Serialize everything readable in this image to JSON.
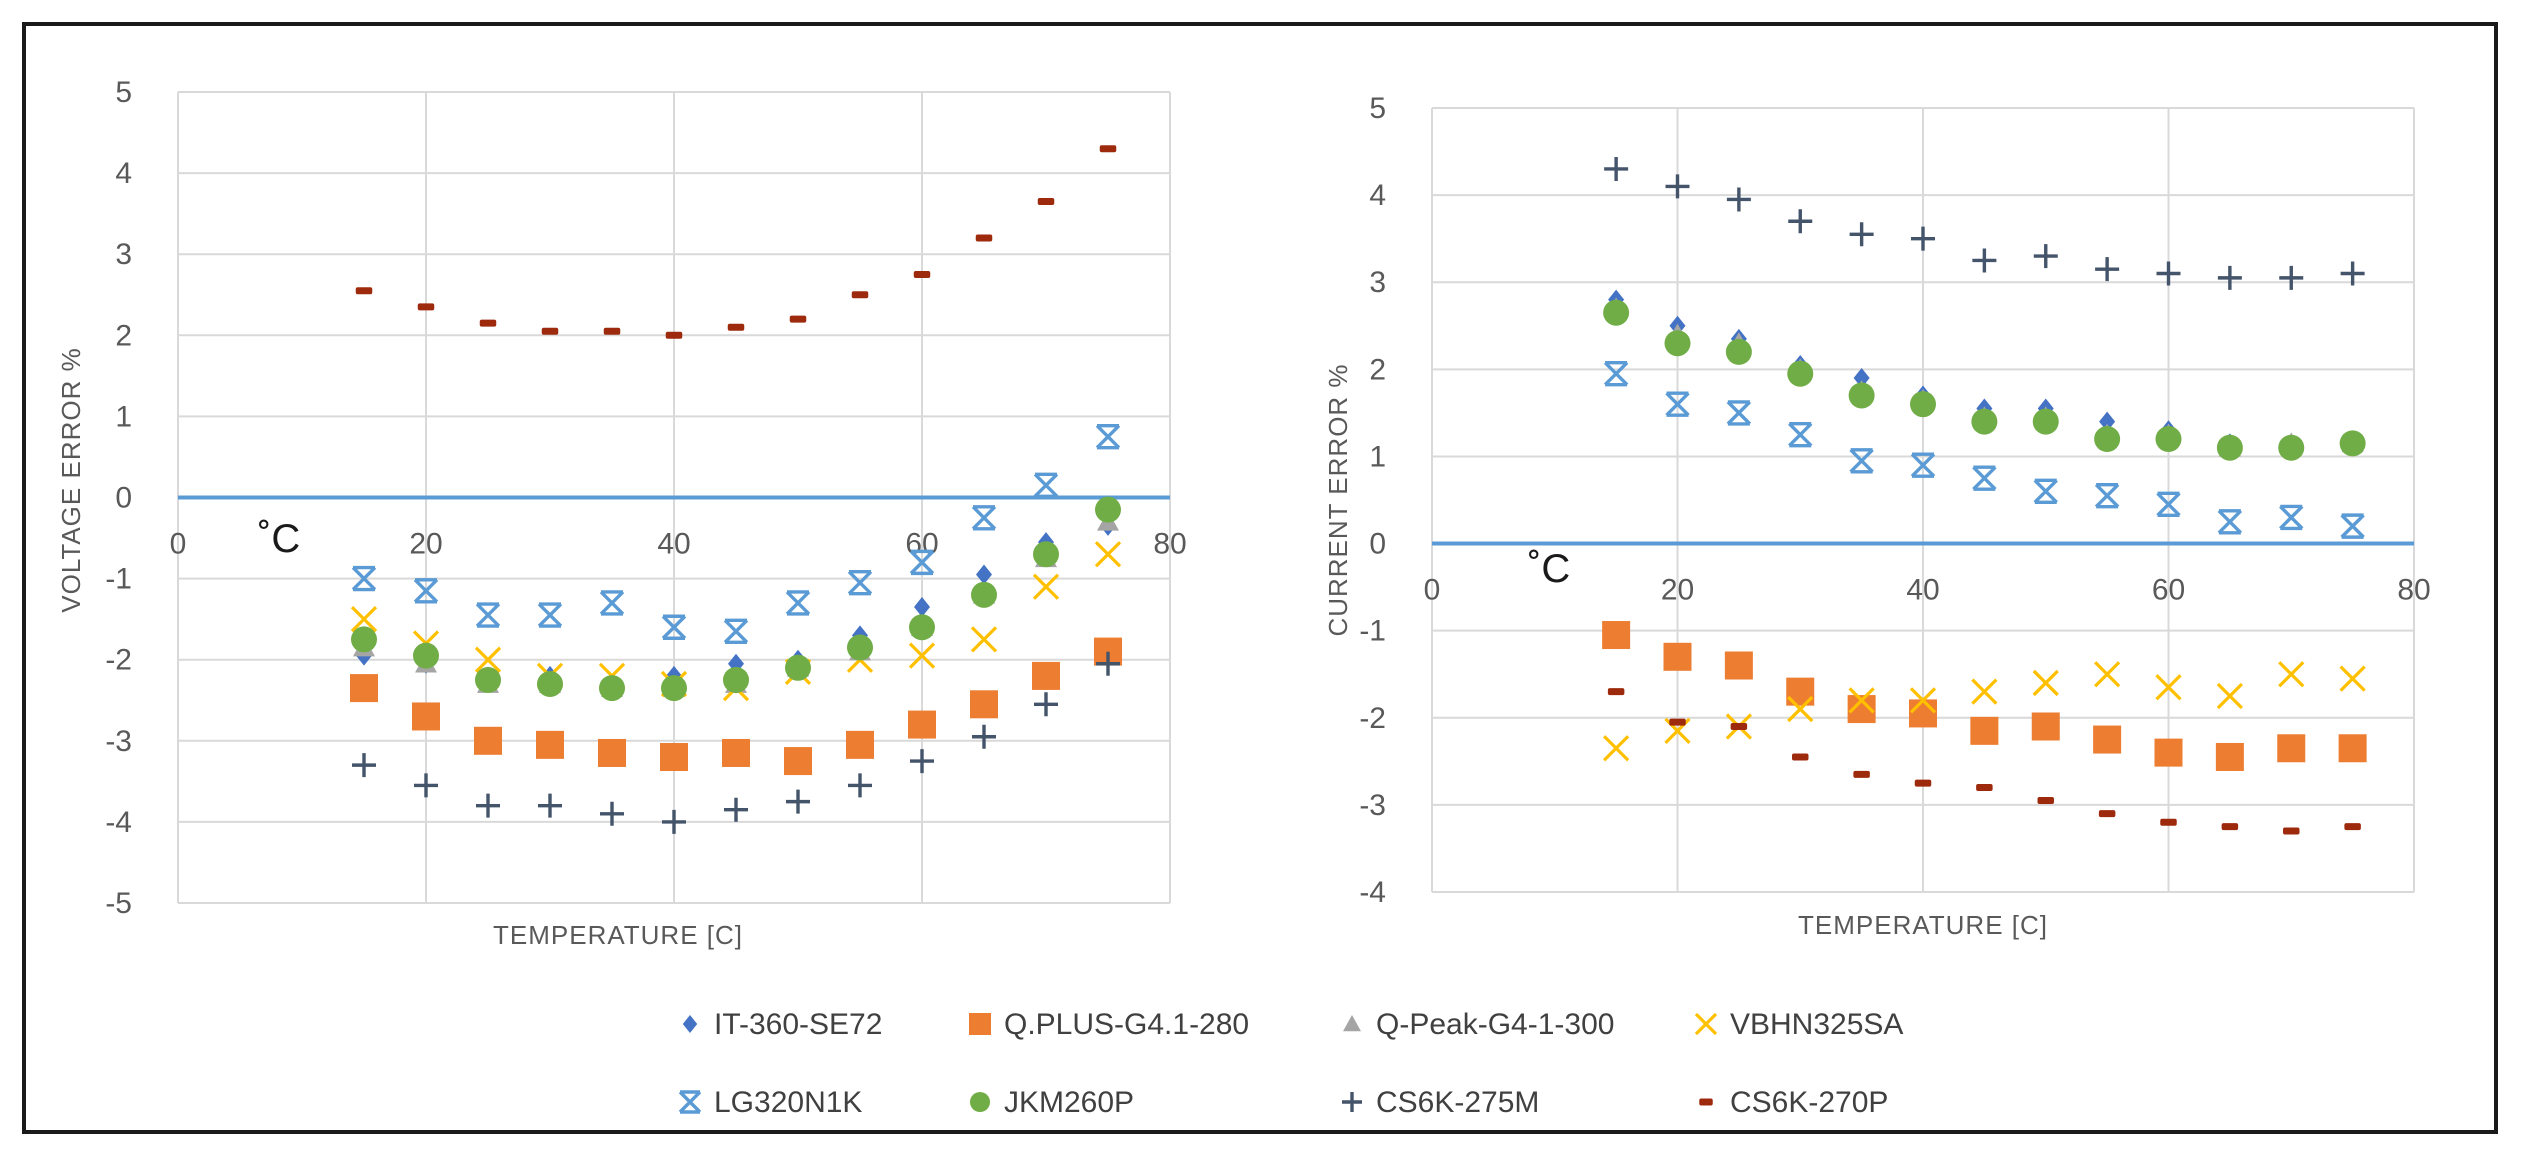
{
  "legend": [
    {
      "name": "IT-360-SE72",
      "color": "#4472C4",
      "marker": "diamond"
    },
    {
      "name": "Q.PLUS-G4.1-280",
      "color": "#ED7D31",
      "marker": "square"
    },
    {
      "name": "Q-Peak-G4-1-300",
      "color": "#A5A5A5",
      "marker": "triangle"
    },
    {
      "name": "VBHN325SA",
      "color": "#FFC000",
      "marker": "x"
    },
    {
      "name": "LG320N1K",
      "color": "#5B9BD5",
      "marker": "xbar"
    },
    {
      "name": "JKM260P",
      "color": "#70AD47",
      "marker": "circle"
    },
    {
      "name": "CS6K-275M",
      "color": "#44546A",
      "marker": "plus"
    },
    {
      "name": "CS6K-270P",
      "color": "#9E2A0E",
      "marker": "dash"
    }
  ],
  "chart_data": [
    {
      "type": "scatter",
      "xlabel": "TEMPERATURE [C]",
      "ylabel": "VOLTAGE ERROR %",
      "unit_label": "˚C",
      "xlim": [
        0,
        80
      ],
      "ylim": [
        -5,
        5
      ],
      "xticks": [
        0,
        20,
        40,
        60,
        80
      ],
      "yticks": [
        5,
        4,
        3,
        2,
        1,
        0,
        -1,
        -2,
        -3,
        -4,
        -5
      ],
      "grid": true,
      "zero_line_color": "#5B9BD5",
      "series": [
        {
          "name": "IT-360-SE72",
          "x": [
            15,
            20,
            25,
            30,
            35,
            40,
            45,
            50,
            55,
            60,
            65,
            70,
            75
          ],
          "y": [
            -1.95,
            -2.05,
            -2.25,
            -2.2,
            -2.3,
            -2.2,
            -2.05,
            -2.0,
            -1.7,
            -1.35,
            -0.95,
            -0.55,
            -0.35
          ]
        },
        {
          "name": "Q.PLUS-G4.1-280",
          "x": [
            15,
            20,
            25,
            30,
            35,
            40,
            45,
            50,
            55,
            60,
            65,
            70,
            75
          ],
          "y": [
            -2.35,
            -2.7,
            -3.0,
            -3.05,
            -3.15,
            -3.2,
            -3.15,
            -3.25,
            -3.05,
            -2.8,
            -2.55,
            -2.2,
            -1.9
          ]
        },
        {
          "name": "Q-Peak-G4-1-300",
          "x": [
            15,
            20,
            25,
            30,
            35,
            40,
            45,
            50,
            55,
            60,
            65,
            70,
            75
          ],
          "y": [
            -1.85,
            -2.05,
            -2.3,
            -2.3,
            -2.35,
            -2.35,
            -2.3,
            -2.1,
            -1.9,
            -1.6,
            -1.2,
            -0.75,
            -0.3
          ]
        },
        {
          "name": "VBHN325SA",
          "x": [
            15,
            20,
            25,
            30,
            35,
            40,
            45,
            50,
            55,
            60,
            65,
            70,
            75
          ],
          "y": [
            -1.5,
            -1.8,
            -2.0,
            -2.2,
            -2.2,
            -2.3,
            -2.35,
            -2.15,
            -2.0,
            -1.95,
            -1.75,
            -1.1,
            -0.7
          ]
        },
        {
          "name": "LG320N1K",
          "x": [
            15,
            20,
            25,
            30,
            35,
            40,
            45,
            50,
            55,
            60,
            65,
            70,
            75
          ],
          "y": [
            -1.0,
            -1.15,
            -1.45,
            -1.45,
            -1.3,
            -1.6,
            -1.65,
            -1.3,
            -1.05,
            -0.8,
            -0.25,
            0.15,
            0.75
          ]
        },
        {
          "name": "JKM260P",
          "x": [
            15,
            20,
            25,
            30,
            35,
            40,
            45,
            50,
            55,
            60,
            65,
            70,
            75
          ],
          "y": [
            -1.75,
            -1.95,
            -2.25,
            -2.3,
            -2.35,
            -2.35,
            -2.25,
            -2.1,
            -1.85,
            -1.6,
            -1.2,
            -0.7,
            -0.15
          ]
        },
        {
          "name": "CS6K-275M",
          "x": [
            15,
            20,
            25,
            30,
            35,
            40,
            45,
            50,
            55,
            60,
            65,
            70,
            75
          ],
          "y": [
            -3.3,
            -3.55,
            -3.8,
            -3.8,
            -3.9,
            -4.0,
            -3.85,
            -3.75,
            -3.55,
            -3.25,
            -2.95,
            -2.55,
            -2.05
          ]
        },
        {
          "name": "CS6K-270P",
          "x": [
            15,
            20,
            25,
            30,
            35,
            40,
            45,
            50,
            55,
            60,
            65,
            70,
            75
          ],
          "y": [
            2.55,
            2.35,
            2.15,
            2.05,
            2.05,
            2.0,
            2.1,
            2.2,
            2.5,
            2.75,
            3.2,
            3.65,
            4.3
          ]
        }
      ]
    },
    {
      "type": "scatter",
      "xlabel": "TEMPERATURE [C]",
      "ylabel": "CURRENT ERROR %",
      "unit_label": "˚C",
      "xlim": [
        0,
        80
      ],
      "ylim": [
        -4,
        5
      ],
      "xticks": [
        0,
        20,
        40,
        60,
        80
      ],
      "yticks": [
        5,
        4,
        3,
        2,
        1,
        0,
        -1,
        -2,
        -3,
        -4
      ],
      "grid": true,
      "zero_line_color": "#5B9BD5",
      "series": [
        {
          "name": "IT-360-SE72",
          "x": [
            15,
            20,
            25,
            30,
            35,
            40,
            45,
            50,
            55,
            60,
            65,
            70,
            75
          ],
          "y": [
            2.8,
            2.5,
            2.35,
            2.05,
            1.9,
            1.7,
            1.55,
            1.55,
            1.4,
            1.3,
            1.15,
            1.15,
            1.15
          ]
        },
        {
          "name": "Q.PLUS-G4.1-280",
          "x": [
            15,
            20,
            25,
            30,
            35,
            40,
            45,
            50,
            55,
            60,
            65,
            70,
            75
          ],
          "y": [
            -1.05,
            -1.3,
            -1.4,
            -1.7,
            -1.9,
            -1.95,
            -2.15,
            -2.1,
            -2.25,
            -2.4,
            -2.45,
            -2.35,
            -2.35
          ]
        },
        {
          "name": "Q-Peak-G4-1-300",
          "x": [
            15,
            20,
            25,
            30,
            35,
            40,
            45,
            50,
            55,
            60,
            65,
            70,
            75
          ],
          "y": [
            2.7,
            2.4,
            2.3,
            2.0,
            1.75,
            1.65,
            1.45,
            1.45,
            1.25,
            1.25,
            1.1,
            1.15,
            1.15
          ]
        },
        {
          "name": "VBHN325SA",
          "x": [
            15,
            20,
            25,
            30,
            35,
            40,
            45,
            50,
            55,
            60,
            65,
            70,
            75
          ],
          "y": [
            -2.35,
            -2.15,
            -2.1,
            -1.9,
            -1.8,
            -1.8,
            -1.7,
            -1.6,
            -1.5,
            -1.65,
            -1.75,
            -1.5,
            -1.55
          ]
        },
        {
          "name": "LG320N1K",
          "x": [
            15,
            20,
            25,
            30,
            35,
            40,
            45,
            50,
            55,
            60,
            65,
            70,
            75
          ],
          "y": [
            1.95,
            1.6,
            1.5,
            1.25,
            0.95,
            0.9,
            0.75,
            0.6,
            0.55,
            0.45,
            0.25,
            0.3,
            0.2
          ]
        },
        {
          "name": "JKM260P",
          "x": [
            15,
            20,
            25,
            30,
            35,
            40,
            45,
            50,
            55,
            60,
            65,
            70,
            75
          ],
          "y": [
            2.65,
            2.3,
            2.2,
            1.95,
            1.7,
            1.6,
            1.4,
            1.4,
            1.2,
            1.2,
            1.1,
            1.1,
            1.15
          ]
        },
        {
          "name": "CS6K-275M",
          "x": [
            15,
            20,
            25,
            30,
            35,
            40,
            45,
            50,
            55,
            60,
            65,
            70,
            75
          ],
          "y": [
            4.3,
            4.1,
            3.95,
            3.7,
            3.55,
            3.5,
            3.25,
            3.3,
            3.15,
            3.1,
            3.05,
            3.05,
            3.1
          ]
        },
        {
          "name": "CS6K-270P",
          "x": [
            15,
            20,
            25,
            30,
            35,
            40,
            45,
            50,
            55,
            60,
            65,
            70,
            75
          ],
          "y": [
            -1.7,
            -2.05,
            -2.1,
            -2.45,
            -2.65,
            -2.75,
            -2.8,
            -2.95,
            -3.1,
            -3.2,
            -3.25,
            -3.3,
            -3.25
          ]
        }
      ]
    }
  ]
}
